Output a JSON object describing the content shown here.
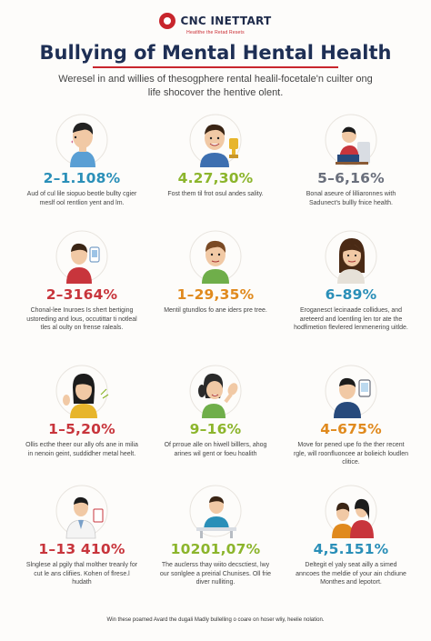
{
  "header": {
    "logo_text": "CNC INETTART",
    "logo_subtitle": "Heatlthe the Retad Resets",
    "title": "Bullying of Mental Hental Health",
    "subtitle": "Weresel in and willies of thesogphere rental healil-focetale'n cuilter ong life shocover the hentive olent."
  },
  "stats": [
    {
      "value": "2–1.108%",
      "color": "#2a8fb8",
      "text": "Aud of cul lile siopuo beotle bullty cgier meslf ool rentlion yent and lm.",
      "icon": "boy-profile-icon"
    },
    {
      "value": "4.27,30%",
      "color": "#8cb52c",
      "text": "Fost them til frot osul andes sality.",
      "icon": "smiling-boy-with-trophy-icon"
    },
    {
      "value": "5–6,16%",
      "color": "#6a6f7c",
      "text": "Bonal aseure of lilliaronnes with Sadunect's bullly fnice health.",
      "icon": "man-sitting-at-desk-icon"
    },
    {
      "value": "2–3164%",
      "color": "#c8353c",
      "text": "Chonal-lee Inuroes Is shert bertiging ustoreding and lous, occutittar ti notleal tles al oulty on frense raleals.",
      "icon": "boy-with-phone-icon"
    },
    {
      "value": "1–29,35%",
      "color": "#e08a1e",
      "text": "Mentil gtundlos fo ane iders pre tree.",
      "icon": "boy-face-icon"
    },
    {
      "value": "6–89%",
      "color": "#2a8fb8",
      "text": "Eroganesct lecinaade collidues, and areteerd and loentling len tor ate the hodfimetion flevlered lenmenering uitlde.",
      "icon": "girl-face-icon"
    },
    {
      "value": "1–5,20%",
      "color": "#c8353c",
      "text": "Ollis ecthe theer our ally ofs ane in milia in nenoin geint, suddidher metal heelt.",
      "icon": "girl-waving-icon"
    },
    {
      "value": "9–16%",
      "color": "#8cb52c",
      "text": "Of prroue alle on hiwell billlers, ahog arines wil gent or foeu hoalith",
      "icon": "girl-high-five-icon"
    },
    {
      "value": "4–675%",
      "color": "#e08a1e",
      "text": "Move for pened upe fo the ther recent rgle, will roonfluoncee ar bolieich loudlen clitice.",
      "icon": "man-with-phone-icon"
    },
    {
      "value": "1–13 410%",
      "color": "#c8353c",
      "text": "Slnglese al pgily thal molther treanly for cut le ans clifiies. Kohen of flrese.l hudath",
      "icon": "doctor-icon"
    },
    {
      "value": "10201,07%",
      "color": "#8cb52c",
      "text": "The auclerss thay wiito decsctiest, lwy our sonlglee a preirial Chunises. Oll frie diver nulliting.",
      "icon": "boy-at-table-icon"
    },
    {
      "value": "4,5.151%",
      "color": "#2a8fb8",
      "text": "Deltegit el yaly seat ailly a simed anncoes the meldie of your ain chdiune Monthes and lepotort.",
      "icon": "two-girls-icon"
    }
  ],
  "footer": {
    "text": "Win these poamed Avard the dugali Madly bullelling o coare on hoser wliy, heelie nolation."
  }
}
